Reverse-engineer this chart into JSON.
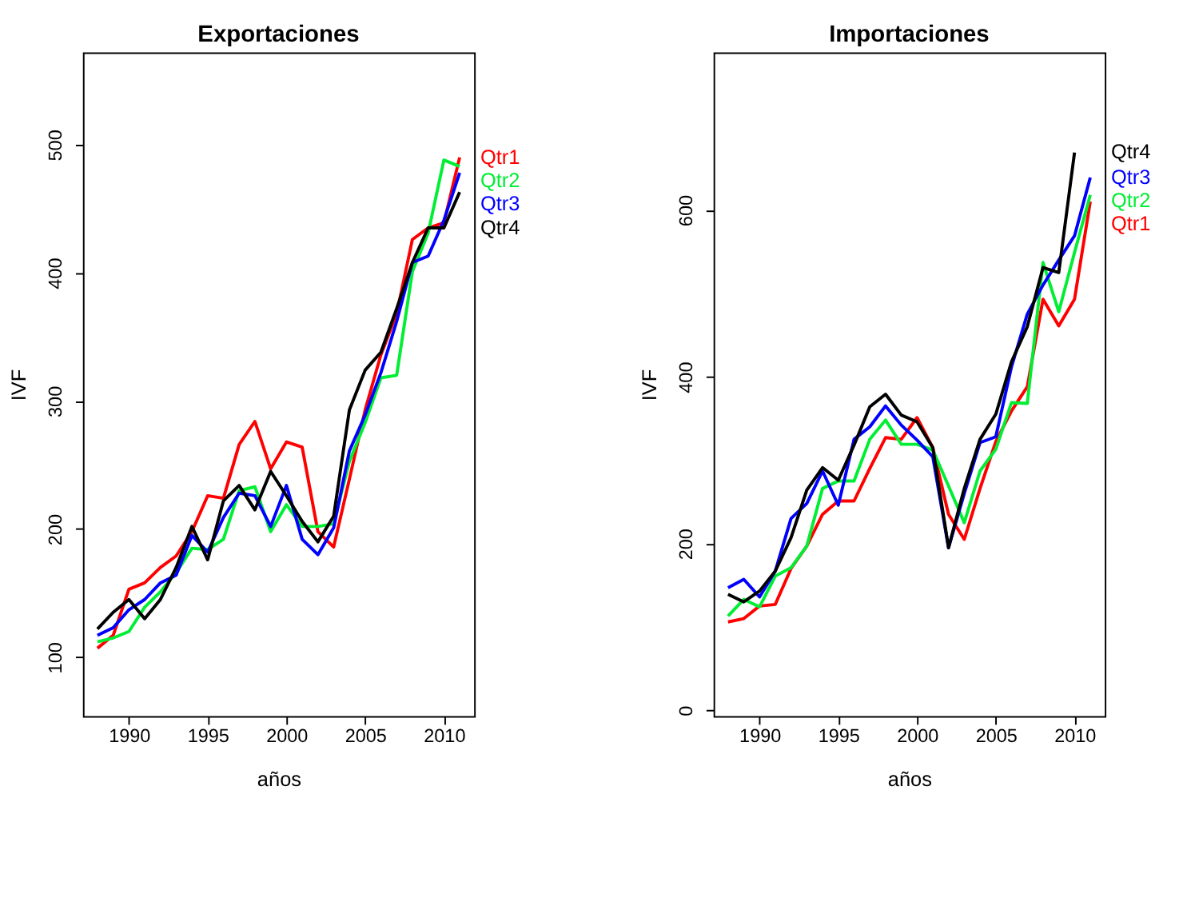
{
  "chart_data": [
    {
      "type": "line",
      "title": "Exportaciones",
      "xlabel": "años",
      "ylabel": "IVF",
      "legend": false,
      "grid": false,
      "x": [
        1988,
        1989,
        1990,
        1991,
        1992,
        1993,
        1994,
        1995,
        1996,
        1997,
        1998,
        1999,
        2000,
        2001,
        2002,
        2003,
        2004,
        2005,
        2006,
        2007,
        2008,
        2009,
        2010,
        2011
      ],
      "xlim": [
        1987.08,
        2011.92
      ],
      "xticks": [
        1990,
        1995,
        2000,
        2005,
        2010
      ],
      "ylim": [
        54,
        572
      ],
      "yticks": [
        100,
        200,
        300,
        400,
        500
      ],
      "series": [
        {
          "name": "Qtr1",
          "color": "#ff0000",
          "values": [
            107,
            117,
            153,
            158,
            170,
            179,
            198,
            226,
            224,
            266,
            284,
            247,
            268,
            264,
            198,
            186,
            239,
            293,
            336,
            368,
            426,
            435,
            439,
            490
          ]
        },
        {
          "name": "Qtr2",
          "color": "#00ee33",
          "values": [
            112,
            115,
            120,
            139,
            151,
            166,
            185,
            184,
            192,
            230,
            233,
            198,
            219,
            202,
            202,
            204,
            253,
            283,
            318,
            320,
            401,
            431,
            488,
            483
          ]
        },
        {
          "name": "Qtr3",
          "color": "#0000ff",
          "values": [
            117,
            123,
            137,
            145,
            158,
            164,
            195,
            182,
            209,
            228,
            226,
            202,
            234,
            192,
            180,
            201,
            261,
            289,
            322,
            362,
            408,
            413,
            441,
            478
          ]
        },
        {
          "name": "Qtr4",
          "color": "#000000",
          "values": [
            122,
            135,
            145,
            130,
            145,
            170,
            202,
            176,
            222,
            234,
            215,
            245,
            226,
            206,
            190,
            210,
            293,
            324,
            338,
            372,
            408,
            435,
            435,
            463
          ]
        }
      ]
    },
    {
      "type": "line",
      "title": "Importaciones",
      "xlabel": "años",
      "ylabel": "IVF",
      "legend": false,
      "grid": false,
      "x": [
        1988,
        1989,
        1990,
        1991,
        1992,
        1993,
        1994,
        1995,
        1996,
        1997,
        1998,
        1999,
        2000,
        2001,
        2002,
        2003,
        2004,
        2005,
        2006,
        2007,
        2008,
        2009,
        2010,
        2011
      ],
      "xlim": [
        1987.08,
        2011.92
      ],
      "xticks": [
        1990,
        1995,
        2000,
        2005,
        2010
      ],
      "ylim": [
        -7,
        789
      ],
      "yticks": [
        0,
        200,
        400,
        600
      ],
      "series": [
        {
          "name": "Qtr1",
          "color": "#ff0000",
          "values": [
            106,
            110,
            125,
            127,
            170,
            197,
            235,
            251,
            251,
            290,
            327,
            325,
            351,
            315,
            235,
            205,
            266,
            322,
            359,
            388,
            493,
            461,
            493,
            610
          ]
        },
        {
          "name": "Qtr2",
          "color": "#00ee33",
          "values": [
            113,
            133,
            124,
            161,
            171,
            197,
            266,
            275,
            275,
            325,
            348,
            319,
            319,
            312,
            269,
            225,
            287,
            313,
            369,
            368,
            537,
            478,
            549,
            618
          ]
        },
        {
          "name": "Qtr3",
          "color": "#0000ff",
          "values": [
            147,
            157,
            136,
            167,
            230,
            248,
            287,
            246,
            325,
            340,
            365,
            342,
            324,
            304,
            195,
            260,
            321,
            328,
            412,
            475,
            510,
            540,
            569,
            639
          ]
        },
        {
          "name": "Qtr4",
          "color": "#000000",
          "values": [
            139,
            130,
            143,
            167,
            207,
            264,
            291,
            276,
            318,
            364,
            379,
            354,
            346,
            315,
            195,
            266,
            325,
            355,
            418,
            460,
            531,
            525,
            669,
            null
          ]
        }
      ]
    }
  ]
}
